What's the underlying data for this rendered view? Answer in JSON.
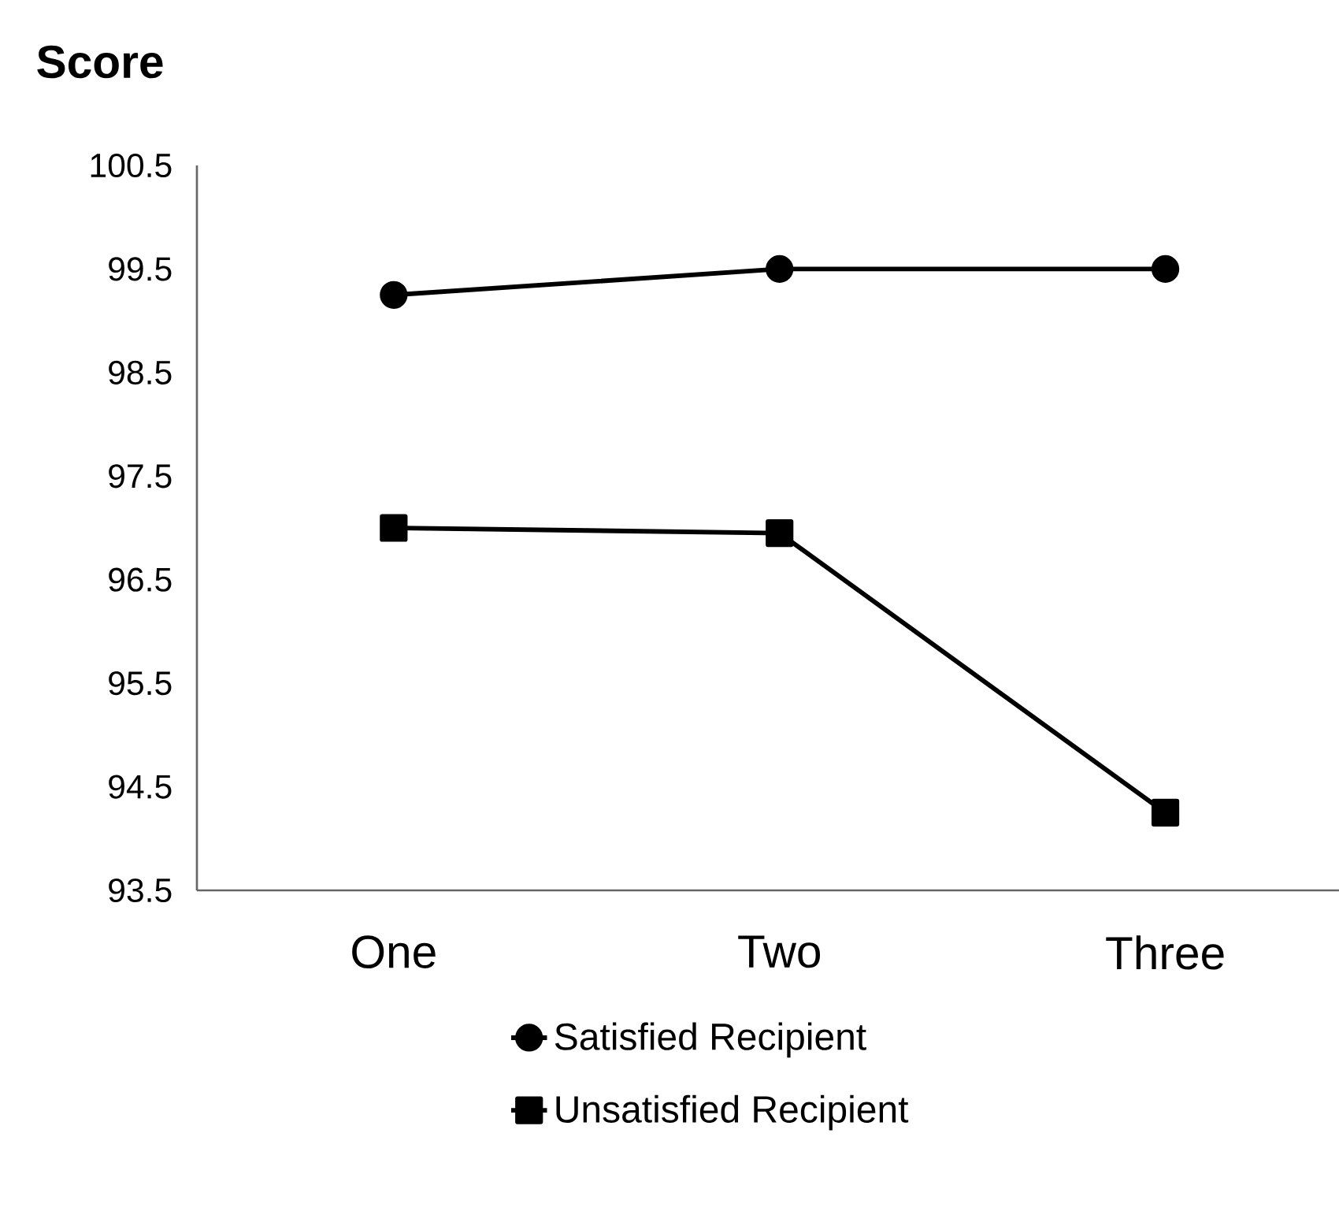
{
  "chart_data": {
    "type": "line",
    "ylabel": "Score",
    "categories": [
      "One",
      "Two",
      "Three"
    ],
    "series": [
      {
        "name": "Satisfied Recipient",
        "color": "#000000",
        "marker": "circle",
        "values": [
          99.25,
          99.5,
          99.5
        ]
      },
      {
        "name": "Unsatisfied Recipient",
        "color": "#000000",
        "marker": "square",
        "values": [
          97.0,
          96.95,
          94.25
        ]
      }
    ],
    "ylim": [
      93.5,
      100.5
    ],
    "yticks": [
      93.5,
      94.5,
      95.5,
      96.5,
      97.5,
      98.5,
      99.5,
      100.5
    ],
    "grid": false,
    "legend": "bottom",
    "line_style": "solid"
  }
}
